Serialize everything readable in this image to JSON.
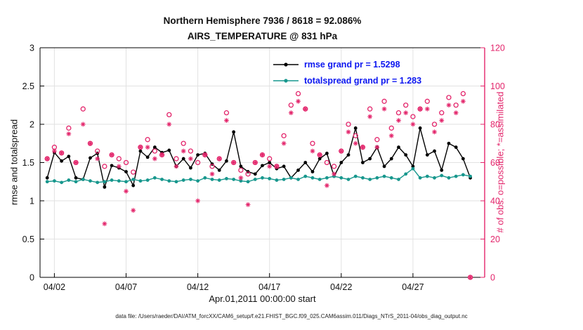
{
  "title": {
    "line1": "Northern Hemisphere 7936 / 8618 = 92.086%",
    "line2": "AIRS_TEMPERATURE @ 831 hPa"
  },
  "axes": {
    "left_label": "rmse and totalspread",
    "right_label": "# of obs: o=possible; *=assimilated",
    "x_label": "Apr.01,2011 00:00:00 start"
  },
  "legend": [
    {
      "label": "rmse grand pr = 1.5298",
      "color": "#000000"
    },
    {
      "label": "totalspread grand pr = 1.283",
      "color": "#17978d"
    }
  ],
  "caption": "data file: /Users/raeder/DAI/ATM_forcXX/CAM6_setup/f.e21.FHIST_BGC.f09_025.CAM6assim.011/Diags_NTrS_2011-04/obs_diag_output.nc",
  "colors": {
    "obs": "#e3256b",
    "rmse": "#000000",
    "spread": "#17978d",
    "legend_text": "#0b16f0",
    "grid": "#e2e2e2",
    "axis": "#000000"
  },
  "chart_data": {
    "type": "line",
    "title": "Northern Hemisphere 7936 / 8618 = 92.086% | AIRS_TEMPERATURE @ 831 hPa",
    "xlabel": "Apr.01,2011 00:00:00 start",
    "ylabel_left": "rmse and totalspread",
    "ylabel_right": "# of obs: o=possible; *=assimilated",
    "xlim": [
      0,
      31
    ],
    "left_ylim": [
      0,
      3
    ],
    "right_ylim": [
      0,
      120
    ],
    "left_yticks": [
      0,
      0.5,
      1,
      1.5,
      2,
      2.5,
      3
    ],
    "right_yticks": [
      0,
      20,
      40,
      60,
      80,
      100,
      120
    ],
    "x_ticks": [
      {
        "day": 1,
        "label": "04/02"
      },
      {
        "day": 6,
        "label": "04/07"
      },
      {
        "day": 11,
        "label": "04/12"
      },
      {
        "day": 16,
        "label": "04/17"
      },
      {
        "day": 21,
        "label": "04/22"
      },
      {
        "day": 26,
        "label": "04/27"
      }
    ],
    "x_days": [
      0.5,
      1,
      1.5,
      2,
      2.5,
      3,
      3.5,
      4,
      4.5,
      5,
      5.5,
      6,
      6.5,
      7,
      7.5,
      8,
      8.5,
      9,
      9.5,
      10,
      10.5,
      11,
      11.5,
      12,
      12.5,
      13,
      13.5,
      14,
      14.5,
      15,
      15.5,
      16,
      16.5,
      17,
      17.5,
      18,
      18.5,
      19,
      19.5,
      20,
      20.5,
      21,
      21.5,
      22,
      22.5,
      23,
      23.5,
      24,
      24.5,
      25,
      25.5,
      26,
      26.5,
      27,
      27.5,
      28,
      28.5,
      29,
      29.5,
      30
    ],
    "series": [
      {
        "name": "rmse",
        "axis": "left",
        "line": true,
        "marker": "filled-circle",
        "color": "#000000",
        "grand_mean": 1.5298,
        "values": [
          1.3,
          1.63,
          1.52,
          1.58,
          1.3,
          1.28,
          1.56,
          1.62,
          1.18,
          1.46,
          1.43,
          1.38,
          1.2,
          1.65,
          1.57,
          1.7,
          1.63,
          1.66,
          1.45,
          1.55,
          1.43,
          1.6,
          1.62,
          1.48,
          1.4,
          1.52,
          1.9,
          1.45,
          1.38,
          1.35,
          1.46,
          1.5,
          1.42,
          1.45,
          1.3,
          1.4,
          1.5,
          1.38,
          1.55,
          1.62,
          1.32,
          1.5,
          1.6,
          1.95,
          1.5,
          1.55,
          1.7,
          1.45,
          1.55,
          1.7,
          1.6,
          1.45,
          1.95,
          1.6,
          1.65,
          1.4,
          1.75,
          1.7,
          1.55,
          1.3
        ]
      },
      {
        "name": "totalspread",
        "axis": "left",
        "line": true,
        "marker": "filled-circle",
        "color": "#17978d",
        "grand_mean": 1.283,
        "values": [
          1.25,
          1.26,
          1.24,
          1.27,
          1.25,
          1.28,
          1.26,
          1.24,
          1.25,
          1.27,
          1.26,
          1.25,
          1.28,
          1.26,
          1.27,
          1.3,
          1.28,
          1.26,
          1.25,
          1.27,
          1.28,
          1.26,
          1.3,
          1.28,
          1.27,
          1.29,
          1.28,
          1.26,
          1.25,
          1.28,
          1.3,
          1.29,
          1.27,
          1.28,
          1.3,
          1.28,
          1.32,
          1.3,
          1.28,
          1.3,
          1.32,
          1.3,
          1.28,
          1.32,
          1.3,
          1.28,
          1.3,
          1.32,
          1.3,
          1.28,
          1.35,
          1.42,
          1.3,
          1.32,
          1.3,
          1.33,
          1.3,
          1.32,
          1.34,
          1.32
        ]
      },
      {
        "name": "possible_obs",
        "axis": "right",
        "line": false,
        "marker": "open-circle",
        "color": "#e3256b",
        "values": [
          62,
          68,
          65,
          78,
          60,
          88,
          70,
          66,
          58,
          64,
          62,
          60,
          55,
          68,
          72,
          66,
          64,
          85,
          62,
          70,
          66,
          60,
          64,
          58,
          62,
          86,
          60,
          56,
          54,
          60,
          64,
          62,
          58,
          74,
          90,
          96,
          88,
          70,
          64,
          60,
          58,
          66,
          80,
          74,
          68,
          88,
          72,
          92,
          78,
          86,
          90,
          84,
          88,
          92,
          80,
          86,
          94,
          90,
          96,
          0
        ]
      },
      {
        "name": "assimilated_obs",
        "axis": "right",
        "line": false,
        "marker": "asterisk",
        "color": "#e3256b",
        "values": [
          62,
          66,
          65,
          75,
          60,
          80,
          70,
          62,
          28,
          64,
          58,
          45,
          35,
          68,
          68,
          62,
          64,
          80,
          58,
          66,
          62,
          40,
          64,
          54,
          62,
          82,
          60,
          52,
          38,
          60,
          64,
          58,
          58,
          70,
          86,
          92,
          88,
          66,
          64,
          48,
          54,
          66,
          76,
          70,
          68,
          84,
          68,
          88,
          74,
          82,
          86,
          80,
          88,
          88,
          76,
          82,
          90,
          86,
          92,
          0
        ]
      }
    ]
  }
}
